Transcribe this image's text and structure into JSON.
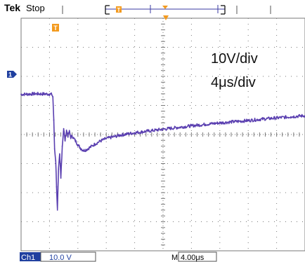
{
  "header": {
    "brand": "Tek",
    "status": "Stop",
    "trigger_marker": "T"
  },
  "annotations": {
    "volts_per_div": "10V/div",
    "time_per_div": "4μs/div"
  },
  "markers": {
    "trigger_position": "T",
    "channel_ground": "1"
  },
  "footer": {
    "channel": "Ch1",
    "channel_scale": "10.0 V",
    "time_prefix": "M",
    "time_scale": "4.00μs"
  },
  "colors": {
    "trace": "#5a3fb0",
    "trigger": "#f39a1e",
    "grid": "#7a7a7a",
    "channel_bg": "#1f3f9f"
  },
  "chart_data": {
    "type": "line",
    "title": "",
    "xlabel": "",
    "ylabel": "",
    "x_unit": "div",
    "y_unit": "div",
    "xlim": [
      0,
      10
    ],
    "ylim": [
      -4,
      4
    ],
    "grid": true,
    "divisions_x": 10,
    "divisions_y": 8,
    "series": [
      {
        "points": [
          [
            0.0,
            1.38
          ],
          [
            0.5,
            1.4
          ],
          [
            1.0,
            1.39
          ],
          [
            1.08,
            1.38
          ],
          [
            1.12,
            1.3
          ],
          [
            1.15,
            0.5
          ],
          [
            1.18,
            -0.5
          ],
          [
            1.22,
            -0.9
          ],
          [
            1.25,
            -1.8
          ],
          [
            1.28,
            -2.6
          ],
          [
            1.32,
            -1.2
          ],
          [
            1.36,
            -0.7
          ],
          [
            1.4,
            -1.5
          ],
          [
            1.45,
            -0.4
          ],
          [
            1.5,
            0.2
          ],
          [
            1.55,
            -0.2
          ],
          [
            1.6,
            0.15
          ],
          [
            1.65,
            -0.05
          ],
          [
            1.7,
            0.1
          ],
          [
            1.75,
            -0.1
          ],
          [
            1.8,
            -0.05
          ],
          [
            1.9,
            -0.2
          ],
          [
            2.0,
            -0.35
          ],
          [
            2.1,
            -0.48
          ],
          [
            2.2,
            -0.55
          ],
          [
            2.3,
            -0.52
          ],
          [
            2.4,
            -0.46
          ],
          [
            2.6,
            -0.33
          ],
          [
            2.8,
            -0.22
          ],
          [
            3.0,
            -0.14
          ],
          [
            3.5,
            -0.02
          ],
          [
            4.0,
            0.06
          ],
          [
            4.5,
            0.12
          ],
          [
            5.0,
            0.18
          ],
          [
            5.5,
            0.24
          ],
          [
            6.0,
            0.3
          ],
          [
            6.5,
            0.35
          ],
          [
            7.0,
            0.4
          ],
          [
            7.5,
            0.44
          ],
          [
            8.0,
            0.48
          ],
          [
            8.5,
            0.53
          ],
          [
            9.0,
            0.57
          ],
          [
            9.5,
            0.61
          ],
          [
            10.0,
            0.65
          ]
        ]
      }
    ]
  }
}
